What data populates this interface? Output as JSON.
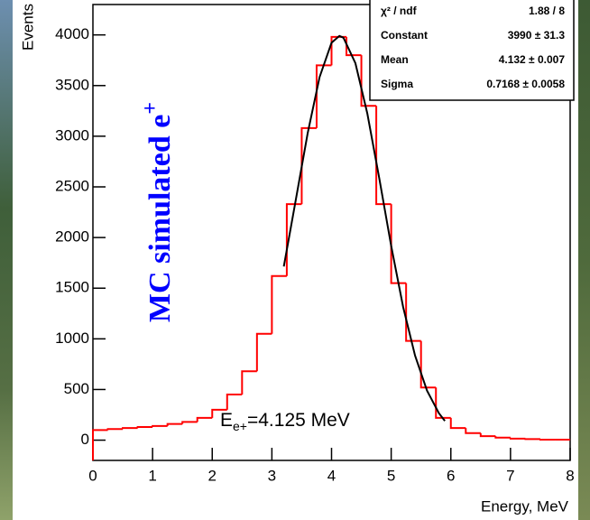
{
  "chart_data": {
    "type": "histogram",
    "title": {
      "text": "MC simulated e",
      "sup": "+"
    },
    "x_label": "Energy, MeV",
    "y_label": "Events",
    "annotation": {
      "text": "E",
      "sub": "e+",
      "rest": "=4.125 MeV"
    },
    "stats": [
      {
        "name": "χ² / ndf",
        "value": "1.88 / 8"
      },
      {
        "name": "Constant",
        "value": "3990 ± 31.3"
      },
      {
        "name": "Mean",
        "value": "4.132 ± 0.007"
      },
      {
        "name": "Sigma",
        "value": "0.7168 ± 0.0058"
      }
    ],
    "bins": [
      0,
      0.25,
      0.5,
      0.75,
      1,
      1.25,
      1.5,
      1.75,
      2,
      2.25,
      2.5,
      2.75,
      3,
      3.25,
      3.5,
      3.75,
      4,
      4.25,
      4.5,
      4.75,
      5,
      5.25,
      5.5,
      5.75,
      6,
      6.25,
      6.5,
      6.75,
      7,
      7.25,
      7.5,
      7.75,
      8
    ],
    "series": [
      {
        "color": "#ff0000",
        "values": [
          100,
          110,
          120,
          130,
          140,
          160,
          180,
          220,
          300,
          450,
          680,
          1050,
          1620,
          2330,
          3080,
          3700,
          3980,
          3800,
          3300,
          2330,
          1550,
          980,
          520,
          220,
          120,
          70,
          40,
          25,
          15,
          10,
          5,
          5
        ]
      },
      {
        "color": "#000000",
        "x": [
          3.2,
          3.4,
          3.6,
          3.8,
          4.0,
          4.132,
          4.2,
          4.4,
          4.6,
          4.8,
          5.0,
          5.2,
          5.4,
          5.6,
          5.8,
          5.9
        ],
        "values": [
          1714,
          2369,
          3030,
          3584,
          3923,
          3990,
          3972,
          3721,
          3224,
          2585,
          1917,
          1315,
          835,
          490,
          266,
          190
        ]
      }
    ],
    "xlim": [
      0,
      8
    ],
    "ylim": [
      -200,
      4300
    ],
    "xticks": [
      0,
      1,
      2,
      3,
      4,
      5,
      6,
      7,
      8
    ],
    "yticks": [
      0,
      500,
      1000,
      1500,
      2000,
      2500,
      3000,
      3500,
      4000
    ]
  }
}
